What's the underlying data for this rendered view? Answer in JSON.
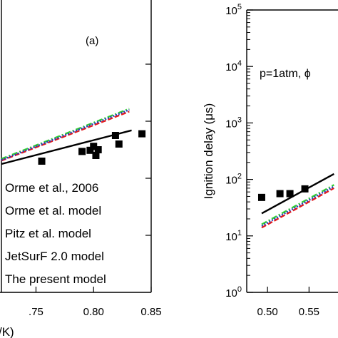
{
  "chart_data": [
    {
      "type": "scatter",
      "panel_label": "(a)",
      "xlim": [
        0.72,
        0.85
      ],
      "ylim_log": [
        0,
        5
      ],
      "x_ticks": [
        0.75,
        0.8,
        0.85
      ],
      "x_tick_labels": [
        ".75",
        "0.80",
        "0.85"
      ],
      "xlabel_fragment": "/K)",
      "grid": false,
      "legend_position": "bottom-left",
      "series": [
        {
          "name": "Orme et al., 2006",
          "kind": "marker",
          "color": "#000000",
          "points": [
            [
              0.755,
              2.3
            ],
            [
              0.79,
              2.47
            ],
            [
              0.797,
              2.49
            ],
            [
              0.8,
              2.56
            ],
            [
              0.802,
              2.4
            ],
            [
              0.804,
              2.5
            ],
            [
              0.819,
              2.75
            ],
            [
              0.822,
              2.6
            ],
            [
              0.842,
              2.78
            ]
          ]
        },
        {
          "name": "Orme et al. model",
          "kind": "line",
          "color": "#000000",
          "dash": "",
          "points": [
            [
              0.72,
              2.25
            ],
            [
              0.833,
              2.84
            ]
          ]
        },
        {
          "name": "Pitz et al. model",
          "kind": "line",
          "color": "#e31a1c",
          "dash": "7,3",
          "points": [
            [
              0.72,
              2.31
            ],
            [
              0.831,
              3.17
            ]
          ]
        },
        {
          "name": "JetSurF 2.0 model",
          "kind": "line",
          "color": "#33cc33",
          "dash": "8,3,2,3",
          "points": [
            [
              0.72,
              2.34
            ],
            [
              0.831,
              3.22
            ]
          ]
        },
        {
          "name": "The present model",
          "kind": "line",
          "color": "#1f3fbf",
          "dash": "2,2",
          "points": [
            [
              0.72,
              2.32
            ],
            [
              0.831,
              3.2
            ]
          ]
        }
      ]
    },
    {
      "type": "scatter",
      "yscale": "log",
      "ylabel": "Ignition delay (μs)",
      "annotation": "p=1atm, ϕ",
      "xlim": [
        0.475,
        0.59
      ],
      "ylim": [
        1,
        100000
      ],
      "x_ticks": [
        0.5,
        0.55
      ],
      "x_tick_labels": [
        "0.50",
        "0.55"
      ],
      "y_ticks": [
        1,
        10,
        100,
        1000,
        10000,
        100000
      ],
      "y_tick_base": "10",
      "y_tick_exponents": [
        "0",
        "1",
        "2",
        "3",
        "4",
        "5"
      ],
      "grid": false,
      "series": [
        {
          "kind": "marker",
          "color": "#000000",
          "points": [
            [
              0.493,
              48
            ],
            [
              0.515,
              56
            ],
            [
              0.527,
              56
            ],
            [
              0.545,
              68
            ]
          ]
        },
        {
          "kind": "line",
          "color": "#000000",
          "dash": "",
          "points": [
            [
              0.493,
              25
            ],
            [
              0.58,
              125
            ]
          ]
        },
        {
          "kind": "line",
          "color": "#e31a1c",
          "dash": "7,3",
          "points": [
            [
              0.493,
              14
            ],
            [
              0.58,
              70
            ]
          ]
        },
        {
          "kind": "line",
          "color": "#33cc33",
          "dash": "8,3,2,3",
          "points": [
            [
              0.493,
              16
            ],
            [
              0.58,
              80
            ]
          ]
        },
        {
          "kind": "line",
          "color": "#1f3fbf",
          "dash": "2,2",
          "points": [
            [
              0.493,
              15
            ],
            [
              0.58,
              75
            ]
          ]
        }
      ]
    }
  ]
}
